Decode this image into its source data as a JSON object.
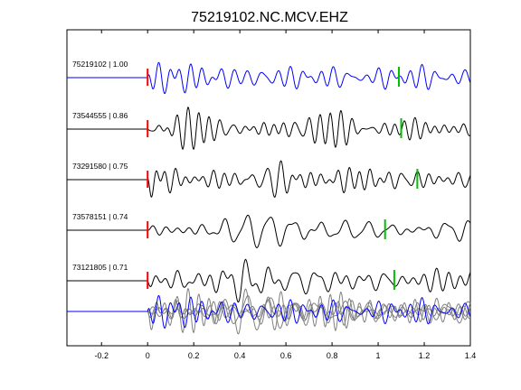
{
  "chart_data": {
    "type": "line",
    "title": "75219102.NC.MCV.EHZ",
    "xlabel": "",
    "ylabel": "",
    "xlim": [
      -0.35,
      1.4
    ],
    "xticks": [
      -0.2,
      0,
      0.2,
      0.4,
      0.6,
      0.8,
      1,
      1.2,
      1.4
    ],
    "xtick_labels": [
      "-0.2",
      "0",
      "0.2",
      "0.4",
      "0.6",
      "0.8",
      "1",
      "1.2",
      "1.4"
    ],
    "grid": false,
    "legend": "none",
    "colors": {
      "reference": "#0000ff",
      "match": "#000000",
      "stack_gray": "#808080",
      "p_pick": "#ff0000",
      "s_pick": "#00c000"
    },
    "series": [
      {
        "name": "75219102 | 1.00",
        "id": "75219102",
        "correlation": 1.0,
        "color": "#0000ff",
        "p_pick": 0.0,
        "s_pick": 1.09,
        "seed": 1
      },
      {
        "name": "73544555 | 0.86",
        "id": "73544555",
        "correlation": 0.86,
        "color": "#000000",
        "p_pick": 0.0,
        "s_pick": 1.1,
        "seed": 2
      },
      {
        "name": "73291580 | 0.75",
        "id": "73291580",
        "correlation": 0.75,
        "color": "#000000",
        "p_pick": 0.0,
        "s_pick": 1.17,
        "seed": 3
      },
      {
        "name": "73578151 | 0.74",
        "id": "73578151",
        "correlation": 0.74,
        "color": "#000000",
        "p_pick": 0.0,
        "s_pick": 1.03,
        "seed": 4
      },
      {
        "name": "73121805 | 0.71",
        "id": "73121805",
        "correlation": 0.71,
        "color": "#000000",
        "p_pick": 0.0,
        "s_pick": 1.07,
        "seed": 5
      }
    ],
    "stack": {
      "overlay_count": 5,
      "reference_color": "#0000ff",
      "others_color": "#808080"
    }
  }
}
